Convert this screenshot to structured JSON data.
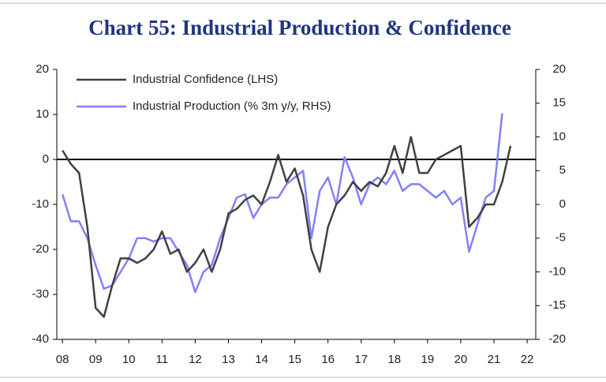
{
  "chart_data": {
    "type": "line",
    "title": "Chart 55: Industrial Production & Confidence",
    "x": [
      2008,
      2008.25,
      2008.5,
      2008.75,
      2009,
      2009.25,
      2009.5,
      2009.75,
      2010,
      2010.25,
      2010.5,
      2010.75,
      2011,
      2011.25,
      2011.5,
      2011.75,
      2012,
      2012.25,
      2012.5,
      2012.75,
      2013,
      2013.25,
      2013.5,
      2013.75,
      2014,
      2014.25,
      2014.5,
      2014.75,
      2015,
      2015.25,
      2015.5,
      2015.75,
      2016,
      2016.25,
      2016.5,
      2016.75,
      2017,
      2017.25,
      2017.5,
      2017.75,
      2018,
      2018.25,
      2018.5,
      2018.75,
      2019,
      2019.25,
      2019.5,
      2019.75,
      2020,
      2020.25,
      2020.5,
      2020.75,
      2021,
      2021.25,
      2021.5
    ],
    "series": [
      {
        "name": "Industrial Confidence (LHS)",
        "color": "#404040",
        "axis": "y",
        "values": [
          2,
          -1,
          -3,
          -15,
          -33,
          -35,
          -28,
          -22,
          -22,
          -23,
          -22,
          -20,
          -16,
          -21,
          -20,
          -25,
          -23,
          -20,
          -25,
          -20,
          -12,
          -11,
          -9,
          -8,
          -10,
          -5,
          1,
          -5,
          -2,
          -8,
          -20,
          -25,
          -15,
          -10,
          -8,
          -5,
          -7,
          -5,
          -6,
          -3,
          3,
          -3,
          5,
          -3,
          -3,
          0,
          1,
          2,
          3,
          -15,
          -13,
          -10,
          -10,
          -5,
          3
        ]
      },
      {
        "name": "Industrial Production (% 3m y/y, RHS)",
        "color": "#8080ff",
        "axis": "y2",
        "values": [
          1.5,
          -2.5,
          -2.5,
          -5,
          -9,
          -12.5,
          -12,
          -10,
          -8,
          -5,
          -5,
          -5.5,
          -5,
          -5,
          -7,
          -9,
          -13,
          -10,
          -9,
          -5,
          -2,
          1,
          1.5,
          -2,
          0,
          1,
          1,
          3,
          4,
          5,
          -5,
          2,
          4,
          0,
          7,
          4,
          0,
          3,
          4,
          3,
          5,
          2,
          3,
          3,
          2,
          1,
          2,
          0,
          1,
          -7,
          -3,
          1,
          2,
          13.5,
          null
        ]
      }
    ],
    "xlim": [
      2007.83,
      2022.26
    ],
    "xticks": [
      {
        "value": 2008,
        "label": "08"
      },
      {
        "value": 2009,
        "label": "09"
      },
      {
        "value": 2010,
        "label": "10"
      },
      {
        "value": 2011,
        "label": "11"
      },
      {
        "value": 2012,
        "label": "12"
      },
      {
        "value": 2013,
        "label": "13"
      },
      {
        "value": 2014,
        "label": "14"
      },
      {
        "value": 2015,
        "label": "15"
      },
      {
        "value": 2016,
        "label": "16"
      },
      {
        "value": 2017,
        "label": "17"
      },
      {
        "value": 2018,
        "label": "18"
      },
      {
        "value": 2019,
        "label": "19"
      },
      {
        "value": 2020,
        "label": "20"
      },
      {
        "value": 2021,
        "label": "21"
      },
      {
        "value": 2022,
        "label": "22"
      }
    ],
    "ylim": [
      -40,
      20
    ],
    "yticks": [
      -40,
      -30,
      -20,
      -10,
      0,
      10,
      20
    ],
    "y2lim": [
      -20,
      20
    ],
    "y2ticks": [
      -20,
      -15,
      -10,
      -5,
      0,
      5,
      10,
      15,
      20
    ],
    "reference_line": {
      "axis": "y",
      "value": 0
    },
    "legend": "upper left",
    "grid": false
  }
}
